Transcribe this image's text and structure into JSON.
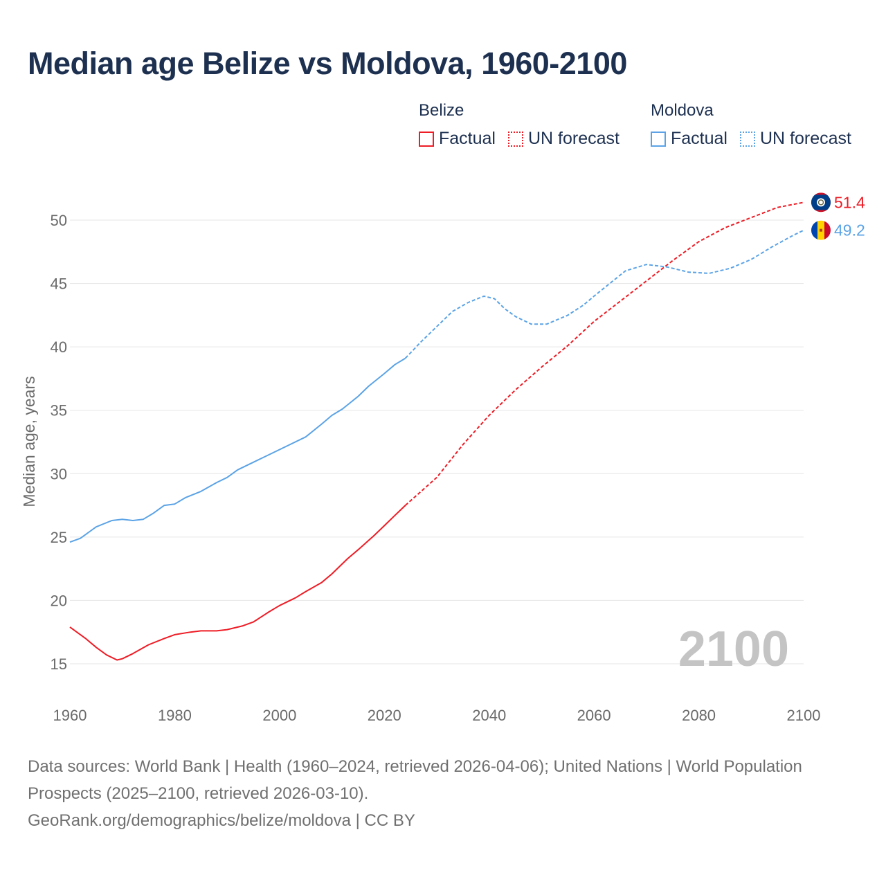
{
  "chart_data": {
    "type": "line",
    "title": "Median age Belize vs Moldova, 1960-2100",
    "xlabel": "",
    "ylabel": "Median age, years",
    "xlim": [
      1960,
      2100
    ],
    "ylim": [
      15,
      50
    ],
    "xticks": [
      1960,
      1980,
      2000,
      2020,
      2040,
      2060,
      2080,
      2100
    ],
    "yticks": [
      15,
      20,
      25,
      30,
      35,
      40,
      45,
      50
    ],
    "grid": true,
    "legend_placement": "top-right",
    "year_watermark": "2100",
    "legend": {
      "groups": [
        {
          "name": "Belize",
          "color": "#ee1c25",
          "items": [
            "Factual",
            "UN forecast"
          ]
        },
        {
          "name": "Moldova",
          "color": "#5ba3e6",
          "items": [
            "Factual",
            "UN forecast"
          ]
        }
      ]
    },
    "series": [
      {
        "name": "Belize",
        "color": "#ee1c25",
        "end_label": "51.4",
        "factual": {
          "x": [
            1960,
            1963,
            1965,
            1967,
            1969,
            1970,
            1972,
            1975,
            1978,
            1980,
            1983,
            1985,
            1988,
            1990,
            1993,
            1995,
            1998,
            2000,
            2003,
            2005,
            2008,
            2010,
            2013,
            2015,
            2018,
            2020,
            2022,
            2024
          ],
          "y": [
            17.9,
            17.0,
            16.3,
            15.7,
            15.3,
            15.4,
            15.8,
            16.5,
            17.0,
            17.3,
            17.5,
            17.6,
            17.6,
            17.7,
            18.0,
            18.3,
            19.1,
            19.6,
            20.2,
            20.7,
            21.4,
            22.1,
            23.3,
            24.0,
            25.1,
            25.9,
            26.7,
            27.5
          ]
        },
        "forecast": {
          "x": [
            2024,
            2030,
            2035,
            2040,
            2045,
            2050,
            2055,
            2060,
            2065,
            2070,
            2075,
            2080,
            2085,
            2090,
            2095,
            2100
          ],
          "y": [
            27.5,
            29.7,
            32.3,
            34.6,
            36.6,
            38.4,
            40.1,
            42.0,
            43.6,
            45.2,
            46.8,
            48.3,
            49.4,
            50.2,
            51.0,
            51.4
          ]
        }
      },
      {
        "name": "Moldova",
        "color": "#5ba3e6",
        "end_label": "49.2",
        "factual": {
          "x": [
            1960,
            1962,
            1965,
            1968,
            1970,
            1972,
            1974,
            1976,
            1978,
            1980,
            1982,
            1985,
            1988,
            1990,
            1992,
            1995,
            1997,
            2000,
            2005,
            2008,
            2010,
            2012,
            2015,
            2017,
            2020,
            2022,
            2024
          ],
          "y": [
            24.6,
            24.9,
            25.8,
            26.3,
            26.4,
            26.3,
            26.4,
            26.9,
            27.5,
            27.6,
            28.1,
            28.6,
            29.3,
            29.7,
            30.3,
            30.9,
            31.3,
            31.9,
            32.9,
            33.9,
            34.6,
            35.1,
            36.1,
            36.9,
            37.9,
            38.6,
            39.1
          ]
        },
        "forecast": {
          "x": [
            2024,
            2027,
            2030,
            2033,
            2036,
            2039,
            2041,
            2043,
            2045,
            2048,
            2051,
            2055,
            2058,
            2060,
            2063,
            2066,
            2070,
            2074,
            2078,
            2082,
            2086,
            2090,
            2094,
            2098,
            2100
          ],
          "y": [
            39.1,
            40.4,
            41.6,
            42.8,
            43.5,
            44.0,
            43.8,
            43.0,
            42.4,
            41.8,
            41.8,
            42.5,
            43.3,
            44.0,
            45.0,
            46.0,
            46.5,
            46.3,
            45.9,
            45.8,
            46.2,
            46.9,
            47.9,
            48.8,
            49.2
          ]
        }
      }
    ]
  },
  "footer": {
    "line1": "Data sources: World Bank | Health (1960–2024, retrieved 2026-04-06); United Nations | World Population Prospects (2025–2100, retrieved 2026-03-10).",
    "line2": "GeoRank.org/demographics/belize/moldova | CC BY"
  }
}
